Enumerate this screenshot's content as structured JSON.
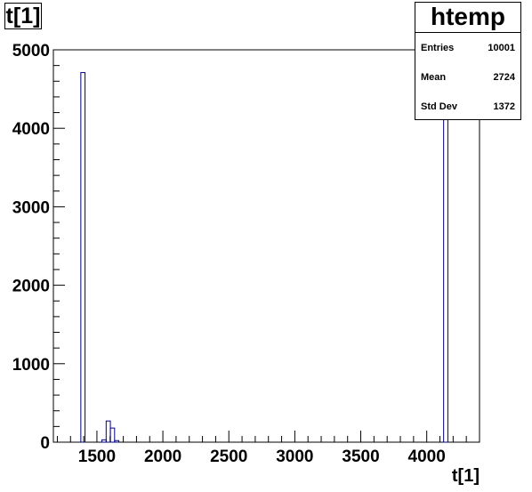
{
  "chart_data": {
    "type": "bar",
    "histogram_name": "htemp",
    "title": "t[1]",
    "xlabel": "t[1]",
    "ylabel": "",
    "xlim": [
      1170,
      4400
    ],
    "ylim": [
      0,
      5000
    ],
    "x_ticks": [
      1500,
      2000,
      2500,
      3000,
      3500,
      4000
    ],
    "y_ticks": [
      0,
      1000,
      2000,
      3000,
      4000,
      5000
    ],
    "bin_width": 32,
    "bins": [
      {
        "x": 1394,
        "value": 4710
      },
      {
        "x": 1554,
        "value": 30
      },
      {
        "x": 1586,
        "value": 270
      },
      {
        "x": 1618,
        "value": 180
      },
      {
        "x": 1650,
        "value": 20
      },
      {
        "x": 4144,
        "value": 4790
      }
    ],
    "line_color": "#000080",
    "stats": {
      "rows": [
        {
          "label": "Entries",
          "value": "10001"
        },
        {
          "label": "Mean",
          "value": "2724"
        },
        {
          "label": "Std Dev",
          "value": "1372"
        }
      ]
    }
  }
}
